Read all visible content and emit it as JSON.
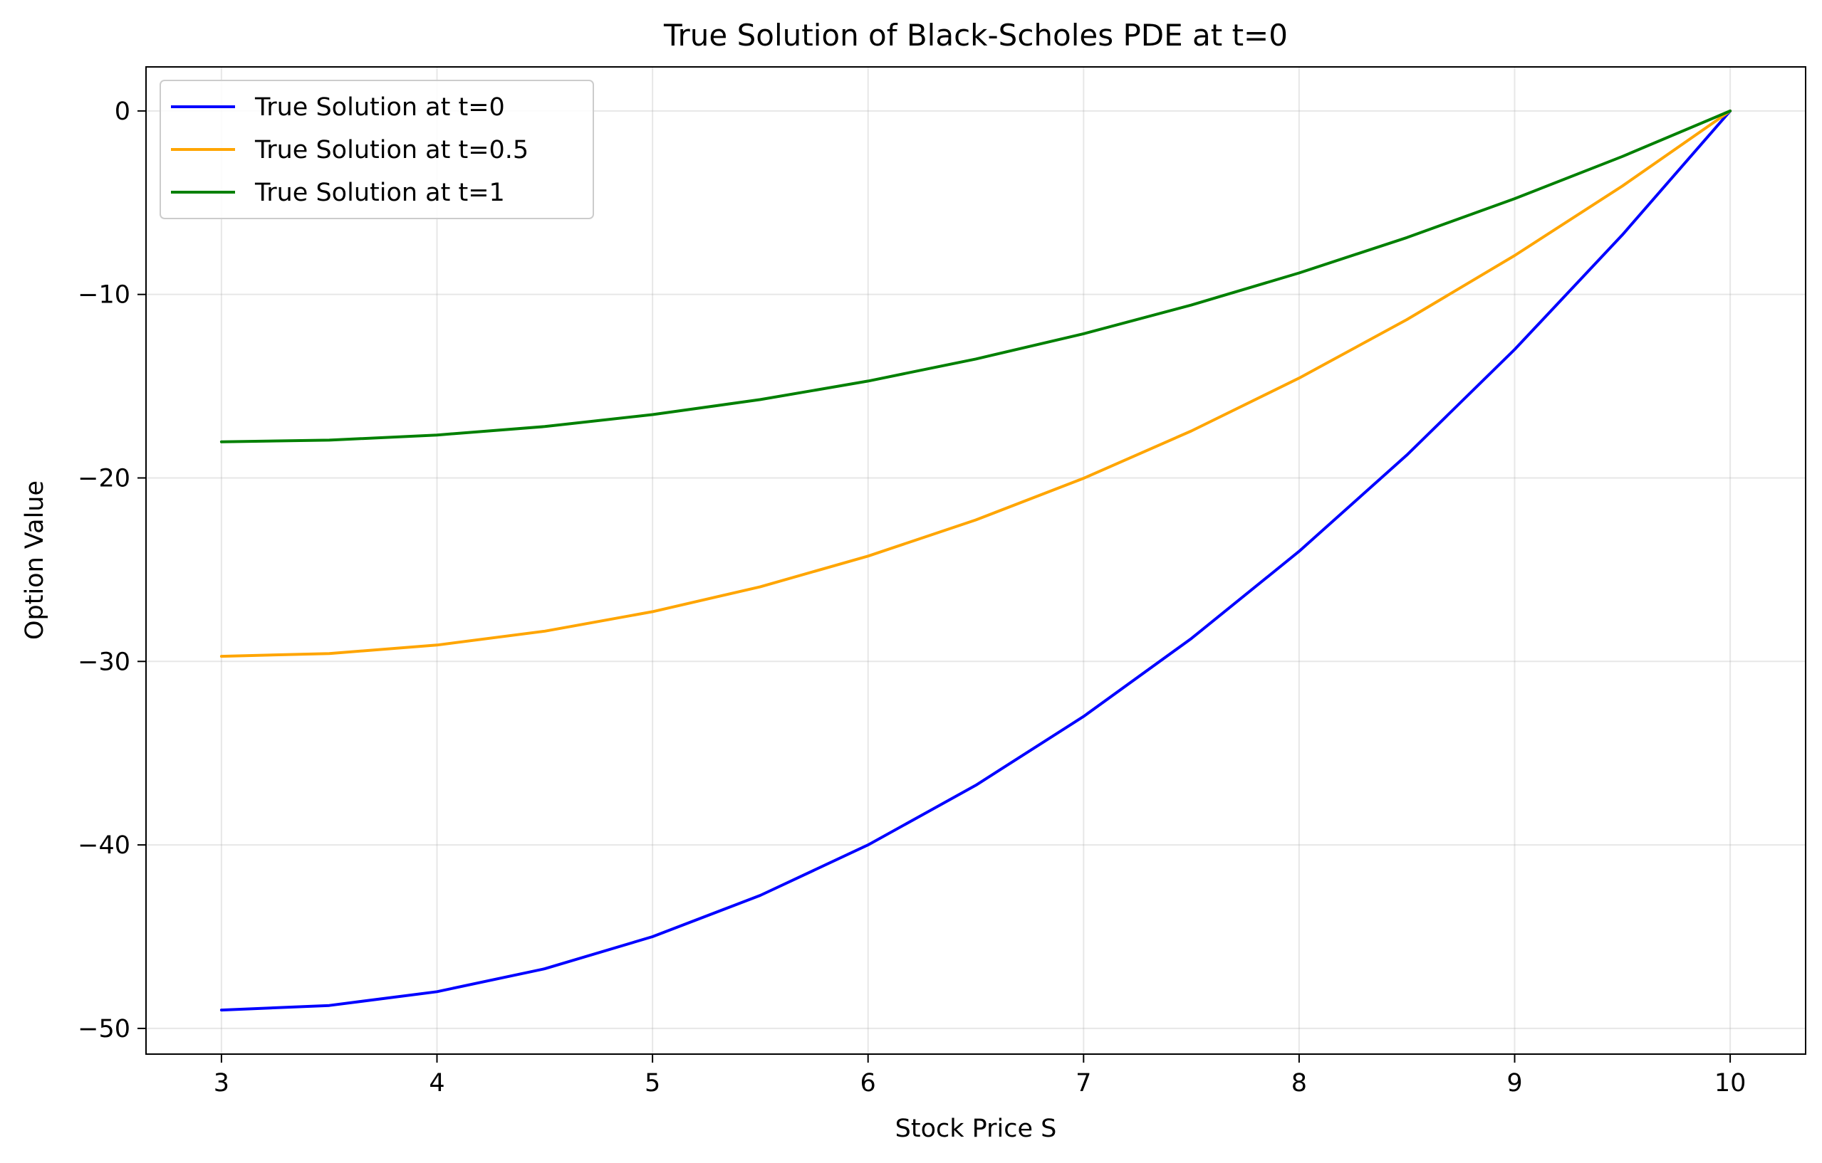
{
  "chart_data": {
    "type": "line",
    "title": "True Solution of Black-Scholes PDE at t=0",
    "xlabel": "Stock Price S",
    "ylabel": "Option Value",
    "xlim": [
      2.65,
      10.35
    ],
    "ylim": [
      -51.4,
      2.4
    ],
    "xticks": [
      3,
      4,
      5,
      6,
      7,
      8,
      9,
      10
    ],
    "yticks": [
      0,
      -10,
      -20,
      -30,
      -40,
      -50
    ],
    "xtick_labels": [
      "3",
      "4",
      "5",
      "6",
      "7",
      "8",
      "9",
      "10"
    ],
    "ytick_labels": [
      "0",
      "−10",
      "−20",
      "−30",
      "−40",
      "−50"
    ],
    "grid": true,
    "legend_position": "top-left",
    "x": [
      3,
      3.5,
      4,
      4.5,
      5,
      5.5,
      6,
      6.5,
      7,
      7.5,
      8,
      8.5,
      9,
      9.5,
      10
    ],
    "series": [
      {
        "name": "True Solution at t=0",
        "color": "#0000ff",
        "values": [
          -49.0,
          -48.75,
          -48.0,
          -46.75,
          -45.0,
          -42.75,
          -40.0,
          -36.75,
          -33.0,
          -28.75,
          -24.0,
          -18.75,
          -13.0,
          -6.75,
          0.0
        ]
      },
      {
        "name": "True Solution at t=0.5",
        "color": "#ffa500",
        "values": [
          -29.72,
          -29.57,
          -29.11,
          -28.35,
          -27.29,
          -25.93,
          -24.26,
          -22.29,
          -20.02,
          -17.44,
          -14.56,
          -11.37,
          -7.88,
          -4.09,
          0.0
        ]
      },
      {
        "name": "True Solution at t=1",
        "color": "#008000",
        "values": [
          -18.03,
          -17.94,
          -17.66,
          -17.2,
          -16.55,
          -15.73,
          -14.72,
          -13.52,
          -12.14,
          -10.58,
          -8.83,
          -6.9,
          -4.78,
          -2.48,
          0.0
        ]
      }
    ]
  }
}
